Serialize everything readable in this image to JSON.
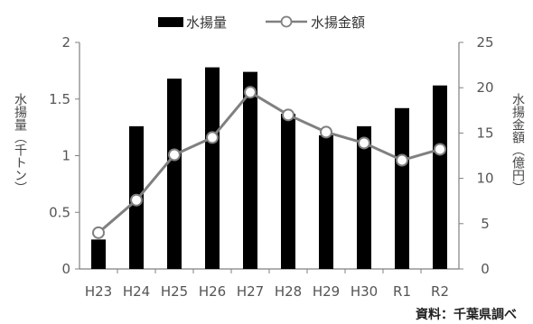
{
  "chart_data": {
    "type": "bar",
    "categories": [
      "H23",
      "H24",
      "H25",
      "H26",
      "H27",
      "H28",
      "H29",
      "H30",
      "R1",
      "R2"
    ],
    "series": [
      {
        "name": "水揚量",
        "type": "bar",
        "axis": "left",
        "values": [
          0.26,
          1.26,
          1.68,
          1.78,
          1.74,
          1.37,
          1.18,
          1.26,
          1.42,
          1.62
        ],
        "color": "#000000"
      },
      {
        "name": "水揚金額",
        "type": "line",
        "axis": "right",
        "values": [
          4.0,
          7.6,
          12.6,
          14.5,
          19.5,
          17.0,
          15.1,
          13.9,
          12.0,
          13.2
        ],
        "color": "#808080"
      }
    ],
    "ylabel_left": "水揚量（千トン）",
    "ylabel_right": "水揚金額（億円）",
    "ylim_left": [
      0,
      2
    ],
    "ylim_right": [
      0,
      25
    ],
    "yticks_left": [
      "0",
      "0.5",
      "1",
      "1.5",
      "2"
    ],
    "yticks_right": [
      "0",
      "5",
      "10",
      "15",
      "20",
      "25"
    ],
    "legend": {
      "position": "top"
    },
    "grid": false,
    "source": "資料：千葉県調べ"
  }
}
